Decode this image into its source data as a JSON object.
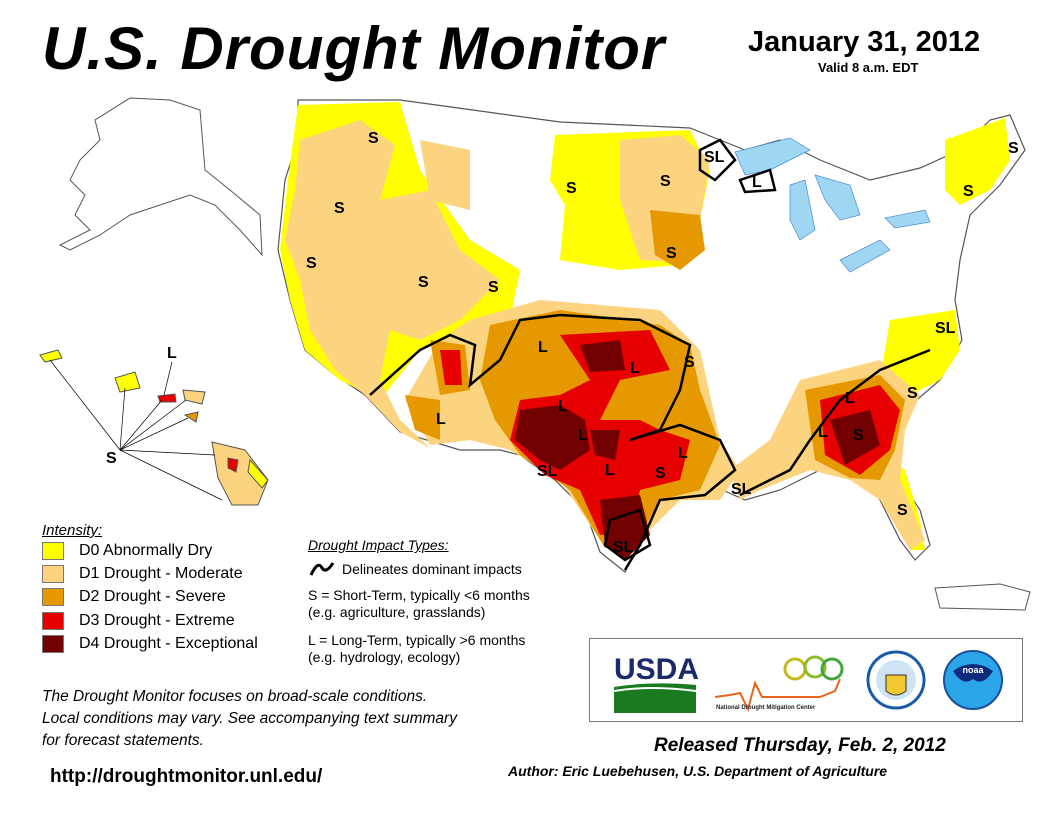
{
  "header": {
    "title": "U.S. Drought Monitor",
    "date": "January 31, 2012",
    "valid": "Valid 8 a.m. EDT"
  },
  "colors": {
    "D0": "#ffff00",
    "D1": "#fcd37f",
    "D2": "#e69800",
    "D3": "#e60000",
    "D4": "#730000"
  },
  "legend": {
    "intensity_title": "Intensity:",
    "items": [
      {
        "code": "D0",
        "label": "D0 Abnormally Dry"
      },
      {
        "code": "D1",
        "label": "D1 Drought - Moderate"
      },
      {
        "code": "D2",
        "label": "D2 Drought - Severe"
      },
      {
        "code": "D3",
        "label": "D3 Drought - Extreme"
      },
      {
        "code": "D4",
        "label": "D4 Drought - Exceptional"
      }
    ],
    "impact_title": "Drought Impact Types:",
    "delineates": "Delineates dominant impacts",
    "short_term": "S = Short-Term, typically <6 months",
    "short_term_eg": "(e.g. agriculture, grasslands)",
    "long_term": "L = Long-Term, typically >6 months",
    "long_term_eg": "(e.g. hydrology, ecology)"
  },
  "map_labels": [
    "S",
    "S",
    "S",
    "S",
    "S",
    "S",
    "S",
    "SL",
    "L",
    "S",
    "S",
    "S",
    "L",
    "L",
    "L",
    "S",
    "L",
    "SL",
    "L",
    "L",
    "S",
    "SL",
    "L",
    "SL",
    "S",
    "L",
    "S",
    "L",
    "SL",
    "S",
    "L",
    "S"
  ],
  "logos": {
    "usda": "USDA",
    "ndmc": "National Drought Mitigation Center",
    "doc": "Department of Commerce",
    "noaa": "noaa"
  },
  "footer": {
    "note": [
      "The Drought Monitor focuses on broad-scale conditions.",
      "Local conditions may vary. See accompanying text summary",
      "for forecast statements."
    ],
    "url": "http://droughtmonitor.unl.edu/",
    "released": "Released Thursday, Feb. 2, 2012",
    "author": "Author: Eric Luebehusen, U.S. Department of Agriculture"
  }
}
